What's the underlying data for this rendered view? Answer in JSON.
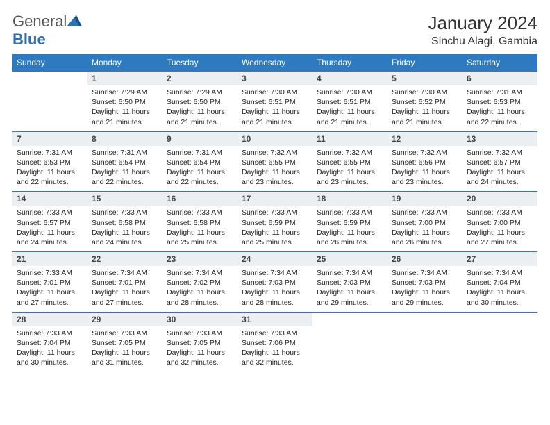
{
  "logo": {
    "general": "General",
    "blue": "Blue"
  },
  "title": "January 2024",
  "location": "Sinchu Alagi, Gambia",
  "daysOfWeek": [
    "Sunday",
    "Monday",
    "Tuesday",
    "Wednesday",
    "Thursday",
    "Friday",
    "Saturday"
  ],
  "colors": {
    "headerBg": "#2e7ac0",
    "headerText": "#ffffff",
    "dayBg": "#eceff1",
    "border": "#2e7ac0",
    "logoBlue": "#2b6fb5"
  },
  "firstDayOffset": 1,
  "days": [
    {
      "n": "1",
      "sunrise": "Sunrise: 7:29 AM",
      "sunset": "Sunset: 6:50 PM",
      "daylight": "Daylight: 11 hours and 21 minutes."
    },
    {
      "n": "2",
      "sunrise": "Sunrise: 7:29 AM",
      "sunset": "Sunset: 6:50 PM",
      "daylight": "Daylight: 11 hours and 21 minutes."
    },
    {
      "n": "3",
      "sunrise": "Sunrise: 7:30 AM",
      "sunset": "Sunset: 6:51 PM",
      "daylight": "Daylight: 11 hours and 21 minutes."
    },
    {
      "n": "4",
      "sunrise": "Sunrise: 7:30 AM",
      "sunset": "Sunset: 6:51 PM",
      "daylight": "Daylight: 11 hours and 21 minutes."
    },
    {
      "n": "5",
      "sunrise": "Sunrise: 7:30 AM",
      "sunset": "Sunset: 6:52 PM",
      "daylight": "Daylight: 11 hours and 21 minutes."
    },
    {
      "n": "6",
      "sunrise": "Sunrise: 7:31 AM",
      "sunset": "Sunset: 6:53 PM",
      "daylight": "Daylight: 11 hours and 22 minutes."
    },
    {
      "n": "7",
      "sunrise": "Sunrise: 7:31 AM",
      "sunset": "Sunset: 6:53 PM",
      "daylight": "Daylight: 11 hours and 22 minutes."
    },
    {
      "n": "8",
      "sunrise": "Sunrise: 7:31 AM",
      "sunset": "Sunset: 6:54 PM",
      "daylight": "Daylight: 11 hours and 22 minutes."
    },
    {
      "n": "9",
      "sunrise": "Sunrise: 7:31 AM",
      "sunset": "Sunset: 6:54 PM",
      "daylight": "Daylight: 11 hours and 22 minutes."
    },
    {
      "n": "10",
      "sunrise": "Sunrise: 7:32 AM",
      "sunset": "Sunset: 6:55 PM",
      "daylight": "Daylight: 11 hours and 23 minutes."
    },
    {
      "n": "11",
      "sunrise": "Sunrise: 7:32 AM",
      "sunset": "Sunset: 6:55 PM",
      "daylight": "Daylight: 11 hours and 23 minutes."
    },
    {
      "n": "12",
      "sunrise": "Sunrise: 7:32 AM",
      "sunset": "Sunset: 6:56 PM",
      "daylight": "Daylight: 11 hours and 23 minutes."
    },
    {
      "n": "13",
      "sunrise": "Sunrise: 7:32 AM",
      "sunset": "Sunset: 6:57 PM",
      "daylight": "Daylight: 11 hours and 24 minutes."
    },
    {
      "n": "14",
      "sunrise": "Sunrise: 7:33 AM",
      "sunset": "Sunset: 6:57 PM",
      "daylight": "Daylight: 11 hours and 24 minutes."
    },
    {
      "n": "15",
      "sunrise": "Sunrise: 7:33 AM",
      "sunset": "Sunset: 6:58 PM",
      "daylight": "Daylight: 11 hours and 24 minutes."
    },
    {
      "n": "16",
      "sunrise": "Sunrise: 7:33 AM",
      "sunset": "Sunset: 6:58 PM",
      "daylight": "Daylight: 11 hours and 25 minutes."
    },
    {
      "n": "17",
      "sunrise": "Sunrise: 7:33 AM",
      "sunset": "Sunset: 6:59 PM",
      "daylight": "Daylight: 11 hours and 25 minutes."
    },
    {
      "n": "18",
      "sunrise": "Sunrise: 7:33 AM",
      "sunset": "Sunset: 6:59 PM",
      "daylight": "Daylight: 11 hours and 26 minutes."
    },
    {
      "n": "19",
      "sunrise": "Sunrise: 7:33 AM",
      "sunset": "Sunset: 7:00 PM",
      "daylight": "Daylight: 11 hours and 26 minutes."
    },
    {
      "n": "20",
      "sunrise": "Sunrise: 7:33 AM",
      "sunset": "Sunset: 7:00 PM",
      "daylight": "Daylight: 11 hours and 27 minutes."
    },
    {
      "n": "21",
      "sunrise": "Sunrise: 7:33 AM",
      "sunset": "Sunset: 7:01 PM",
      "daylight": "Daylight: 11 hours and 27 minutes."
    },
    {
      "n": "22",
      "sunrise": "Sunrise: 7:34 AM",
      "sunset": "Sunset: 7:01 PM",
      "daylight": "Daylight: 11 hours and 27 minutes."
    },
    {
      "n": "23",
      "sunrise": "Sunrise: 7:34 AM",
      "sunset": "Sunset: 7:02 PM",
      "daylight": "Daylight: 11 hours and 28 minutes."
    },
    {
      "n": "24",
      "sunrise": "Sunrise: 7:34 AM",
      "sunset": "Sunset: 7:03 PM",
      "daylight": "Daylight: 11 hours and 28 minutes."
    },
    {
      "n": "25",
      "sunrise": "Sunrise: 7:34 AM",
      "sunset": "Sunset: 7:03 PM",
      "daylight": "Daylight: 11 hours and 29 minutes."
    },
    {
      "n": "26",
      "sunrise": "Sunrise: 7:34 AM",
      "sunset": "Sunset: 7:03 PM",
      "daylight": "Daylight: 11 hours and 29 minutes."
    },
    {
      "n": "27",
      "sunrise": "Sunrise: 7:34 AM",
      "sunset": "Sunset: 7:04 PM",
      "daylight": "Daylight: 11 hours and 30 minutes."
    },
    {
      "n": "28",
      "sunrise": "Sunrise: 7:33 AM",
      "sunset": "Sunset: 7:04 PM",
      "daylight": "Daylight: 11 hours and 30 minutes."
    },
    {
      "n": "29",
      "sunrise": "Sunrise: 7:33 AM",
      "sunset": "Sunset: 7:05 PM",
      "daylight": "Daylight: 11 hours and 31 minutes."
    },
    {
      "n": "30",
      "sunrise": "Sunrise: 7:33 AM",
      "sunset": "Sunset: 7:05 PM",
      "daylight": "Daylight: 11 hours and 32 minutes."
    },
    {
      "n": "31",
      "sunrise": "Sunrise: 7:33 AM",
      "sunset": "Sunset: 7:06 PM",
      "daylight": "Daylight: 11 hours and 32 minutes."
    }
  ]
}
